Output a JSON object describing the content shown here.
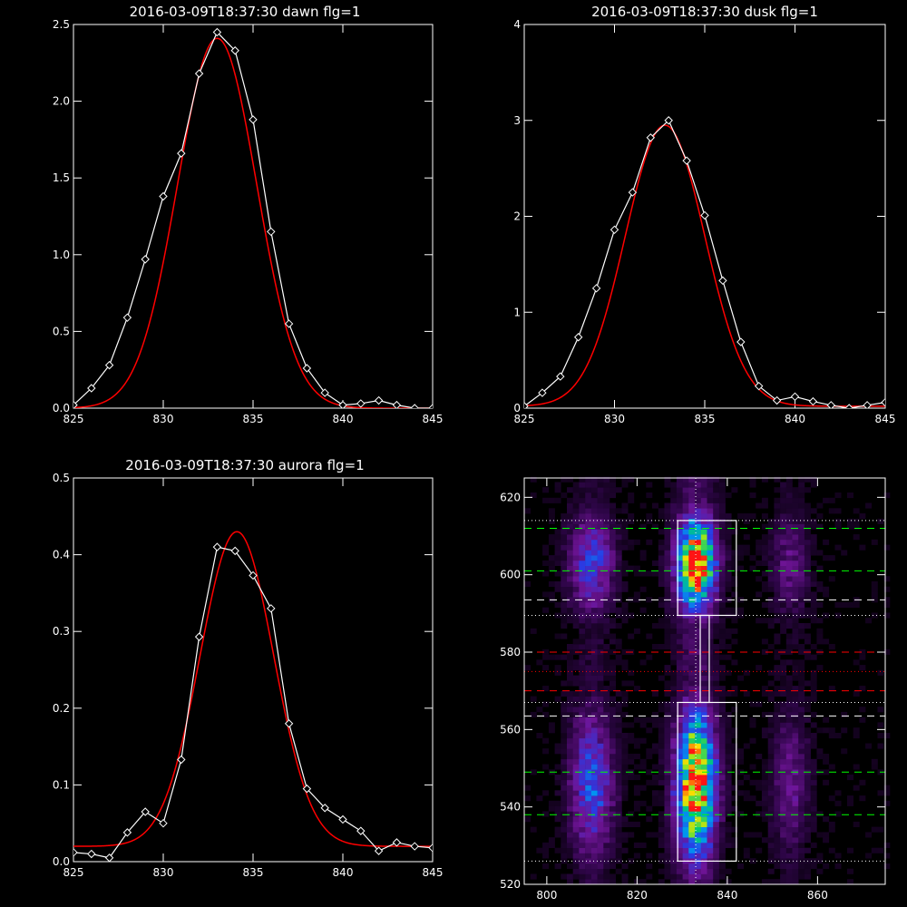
{
  "chart_data": [
    {
      "id": "dawn",
      "type": "line",
      "title": "2016-03-09T18:37:30 dawn flg=1",
      "xlim": [
        825,
        845
      ],
      "ylim": [
        0,
        2.5
      ],
      "xticks": [
        825,
        830,
        835,
        840,
        845
      ],
      "yticks": [
        0.0,
        0.5,
        1.0,
        1.5,
        2.0,
        2.5
      ],
      "ytick_labels": [
        "0.0",
        "0.5",
        "1.0",
        "1.5",
        "2.0",
        "2.5"
      ],
      "series": [
        {
          "style": "white-diamonds",
          "color": "#ffffff",
          "x": [
            825,
            826,
            827,
            828,
            829,
            830,
            831,
            832,
            833,
            834,
            835,
            836,
            837,
            838,
            839,
            840,
            841,
            842,
            843,
            844,
            845
          ],
          "y": [
            0.02,
            0.13,
            0.28,
            0.59,
            0.97,
            1.38,
            1.66,
            2.18,
            2.45,
            2.33,
            1.88,
            1.15,
            0.55,
            0.26,
            0.1,
            0.02,
            0.03,
            0.05,
            0.02,
            0.0,
            0.0
          ]
        },
        {
          "style": "gaussian-fit",
          "color": "#ff0000",
          "amplitude": 2.41,
          "center": 833.0,
          "sigma": 2.2,
          "offset": 0.0
        }
      ]
    },
    {
      "id": "dusk",
      "type": "line",
      "title": "2016-03-09T18:37:30 dusk flg=1",
      "xlim": [
        825,
        845
      ],
      "ylim": [
        0,
        4
      ],
      "xticks": [
        825,
        830,
        835,
        840,
        845
      ],
      "yticks": [
        0,
        1,
        2,
        3,
        4
      ],
      "ytick_labels": [
        "0",
        "1",
        "2",
        "3",
        "4"
      ],
      "series": [
        {
          "style": "white-diamonds",
          "color": "#ffffff",
          "x": [
            825,
            826,
            827,
            828,
            829,
            830,
            831,
            832,
            833,
            834,
            835,
            836,
            837,
            838,
            839,
            840,
            841,
            842,
            843,
            844,
            845
          ],
          "y": [
            0.02,
            0.16,
            0.33,
            0.74,
            1.25,
            1.86,
            2.25,
            2.82,
            3.0,
            2.58,
            2.01,
            1.33,
            0.69,
            0.23,
            0.08,
            0.12,
            0.07,
            0.03,
            0.0,
            0.03,
            0.06
          ]
        },
        {
          "style": "gaussian-fit",
          "color": "#ff0000",
          "amplitude": 2.93,
          "center": 832.8,
          "sigma": 2.2,
          "offset": 0.02
        }
      ]
    },
    {
      "id": "aurora",
      "type": "line",
      "title": "2016-03-09T18:37:30 aurora flg=1",
      "xlim": [
        825,
        845
      ],
      "ylim": [
        0,
        0.5
      ],
      "xticks": [
        825,
        830,
        835,
        840,
        845
      ],
      "yticks": [
        0.0,
        0.1,
        0.2,
        0.3,
        0.4,
        0.5
      ],
      "ytick_labels": [
        "0.0",
        "0.1",
        "0.2",
        "0.3",
        "0.4",
        "0.5"
      ],
      "series": [
        {
          "style": "white-diamonds",
          "color": "#ffffff",
          "x": [
            825,
            826,
            827,
            828,
            829,
            830,
            831,
            832,
            833,
            834,
            835,
            836,
            837,
            838,
            839,
            840,
            841,
            842,
            843,
            844,
            845
          ],
          "y": [
            0.012,
            0.01,
            0.005,
            0.038,
            0.065,
            0.05,
            0.133,
            0.293,
            0.41,
            0.405,
            0.373,
            0.33,
            0.18,
            0.095,
            0.07,
            0.055,
            0.04,
            0.014,
            0.025,
            0.02,
            0.018
          ]
        },
        {
          "style": "gaussian-fit",
          "color": "#ff0000",
          "amplitude": 0.41,
          "center": 834.1,
          "sigma": 2.05,
          "offset": 0.02
        }
      ]
    },
    {
      "id": "spectral-image",
      "type": "heatmap",
      "title": "",
      "xlim": [
        795,
        875
      ],
      "ylim": [
        520,
        625
      ],
      "xticks": [
        800,
        820,
        840,
        860
      ],
      "yticks": [
        520,
        540,
        560,
        580,
        600,
        620
      ],
      "colormap": "black-purple-blue-green-yellow-red",
      "emission_columns": [
        {
          "center": 810,
          "width": 3.5,
          "relative_intensity": 0.45
        },
        {
          "center": 833,
          "width": 3.2,
          "relative_intensity": 1.0
        },
        {
          "center": 854,
          "width": 3.0,
          "relative_intensity": 0.25
        }
      ],
      "bright_bands": [
        {
          "y_center": 603,
          "y_half_width": 9,
          "strength": 1.0
        },
        {
          "y_center": 546,
          "y_half_width": 14,
          "strength": 1.0
        }
      ],
      "boxes": [
        {
          "x": [
            829,
            842
          ],
          "y": [
            589.5,
            614
          ]
        },
        {
          "x": [
            829,
            842
          ],
          "y": [
            526,
            567
          ]
        },
        {
          "x": [
            834,
            836
          ],
          "y": [
            567,
            589.5
          ]
        }
      ],
      "horizontal_lines": [
        {
          "y": 614,
          "color": "#ffffff",
          "style": "dotted"
        },
        {
          "y": 612,
          "color": "#00ff00",
          "style": "dashed"
        },
        {
          "y": 601,
          "color": "#00ff00",
          "style": "dashed"
        },
        {
          "y": 593.5,
          "color": "#ffffff",
          "style": "dashed"
        },
        {
          "y": 589.5,
          "color": "#ffffff",
          "style": "dotted"
        },
        {
          "y": 580,
          "color": "#ff0000",
          "style": "dashed"
        },
        {
          "y": 575,
          "color": "#ff0000",
          "style": "dotted"
        },
        {
          "y": 570,
          "color": "#ff0000",
          "style": "dashed"
        },
        {
          "y": 567,
          "color": "#ffffff",
          "style": "dotted"
        },
        {
          "y": 563.5,
          "color": "#ffffff",
          "style": "dashed"
        },
        {
          "y": 549,
          "color": "#00ff00",
          "style": "dashed"
        },
        {
          "y": 538,
          "color": "#00ff00",
          "style": "dashed"
        },
        {
          "y": 526,
          "color": "#ffffff",
          "style": "dotted"
        }
      ],
      "vertical_lines": [
        {
          "x": 833,
          "color": "#ffffff",
          "style": "dotted"
        }
      ]
    }
  ]
}
